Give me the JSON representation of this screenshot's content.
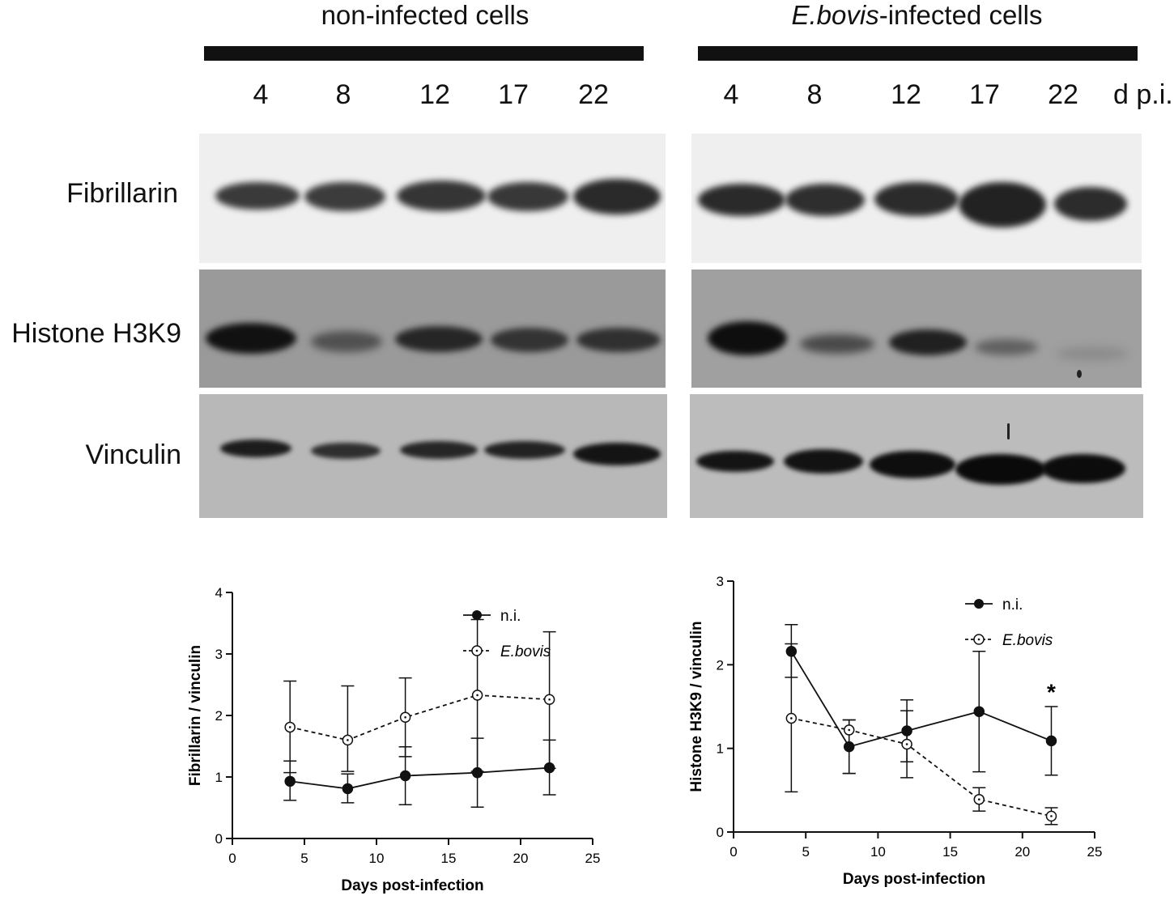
{
  "figure": {
    "left_group_title": "non-infected cells",
    "right_group_title_italic": "E.bovis",
    "right_group_title_rest": "-infected cells",
    "lane_labels": [
      "4",
      "8",
      "12",
      "17",
      "22"
    ],
    "lane_unit": "d p.i.",
    "row_labels": [
      "Fibrillarin",
      "Histone H3K9",
      "Vinculin"
    ]
  },
  "chart_data": [
    {
      "type": "line",
      "xlabel": "Days post-infection",
      "ylabel": "Fibrillarin  / vinculin",
      "xlim": [
        0,
        25
      ],
      "ylim": [
        0,
        4
      ],
      "xticks": [
        0,
        5,
        10,
        15,
        20,
        25
      ],
      "yticks": [
        0,
        1,
        2,
        3,
        4
      ],
      "legend_position": "top-right",
      "x": [
        4,
        8,
        12,
        17,
        22
      ],
      "series": [
        {
          "name": "n.i.",
          "marker": "filled-circle",
          "line": "solid",
          "color": "#111111",
          "values": [
            0.93,
            0.81,
            1.02,
            1.07,
            1.15
          ],
          "error_low": [
            0.62,
            0.58,
            0.55,
            0.51,
            0.71
          ],
          "error_high": [
            1.26,
            1.05,
            1.49,
            1.63,
            1.6
          ]
        },
        {
          "name": "E.bovis",
          "marker": "open-circle-dot",
          "line": "dashed",
          "color": "#111111",
          "values": [
            1.81,
            1.6,
            1.97,
            2.33,
            2.26
          ],
          "error_low": [
            1.07,
            1.09,
            1.33,
            1.09,
            1.14
          ],
          "error_high": [
            2.56,
            2.48,
            2.61,
            3.56,
            3.36
          ]
        }
      ]
    },
    {
      "type": "line",
      "xlabel": "Days post-infection",
      "ylabel": "Histone H3K9 / vinculin",
      "xlim": [
        0,
        25
      ],
      "ylim": [
        0,
        3
      ],
      "xticks": [
        0,
        5,
        10,
        15,
        20,
        25
      ],
      "yticks": [
        0,
        1,
        2,
        3
      ],
      "legend_position": "top-right",
      "annotations": [
        {
          "text": "*",
          "x": 22,
          "y": 1.58
        }
      ],
      "x": [
        4,
        8,
        12,
        17,
        22
      ],
      "series": [
        {
          "name": "n.i.",
          "marker": "filled-circle",
          "line": "solid",
          "color": "#111111",
          "values": [
            2.16,
            1.02,
            1.21,
            1.44,
            1.09
          ],
          "error_low": [
            1.85,
            0.7,
            0.84,
            0.72,
            0.68
          ],
          "error_high": [
            2.48,
            1.34,
            1.58,
            2.16,
            1.5
          ]
        },
        {
          "name": "E.bovis",
          "marker": "open-circle-dot",
          "line": "dashed",
          "color": "#111111",
          "values": [
            1.36,
            1.22,
            1.05,
            0.39,
            0.19
          ],
          "error_low": [
            0.48,
            0.7,
            0.65,
            0.25,
            0.09
          ],
          "error_high": [
            2.25,
            1.34,
            1.45,
            0.53,
            0.29
          ]
        }
      ]
    }
  ]
}
